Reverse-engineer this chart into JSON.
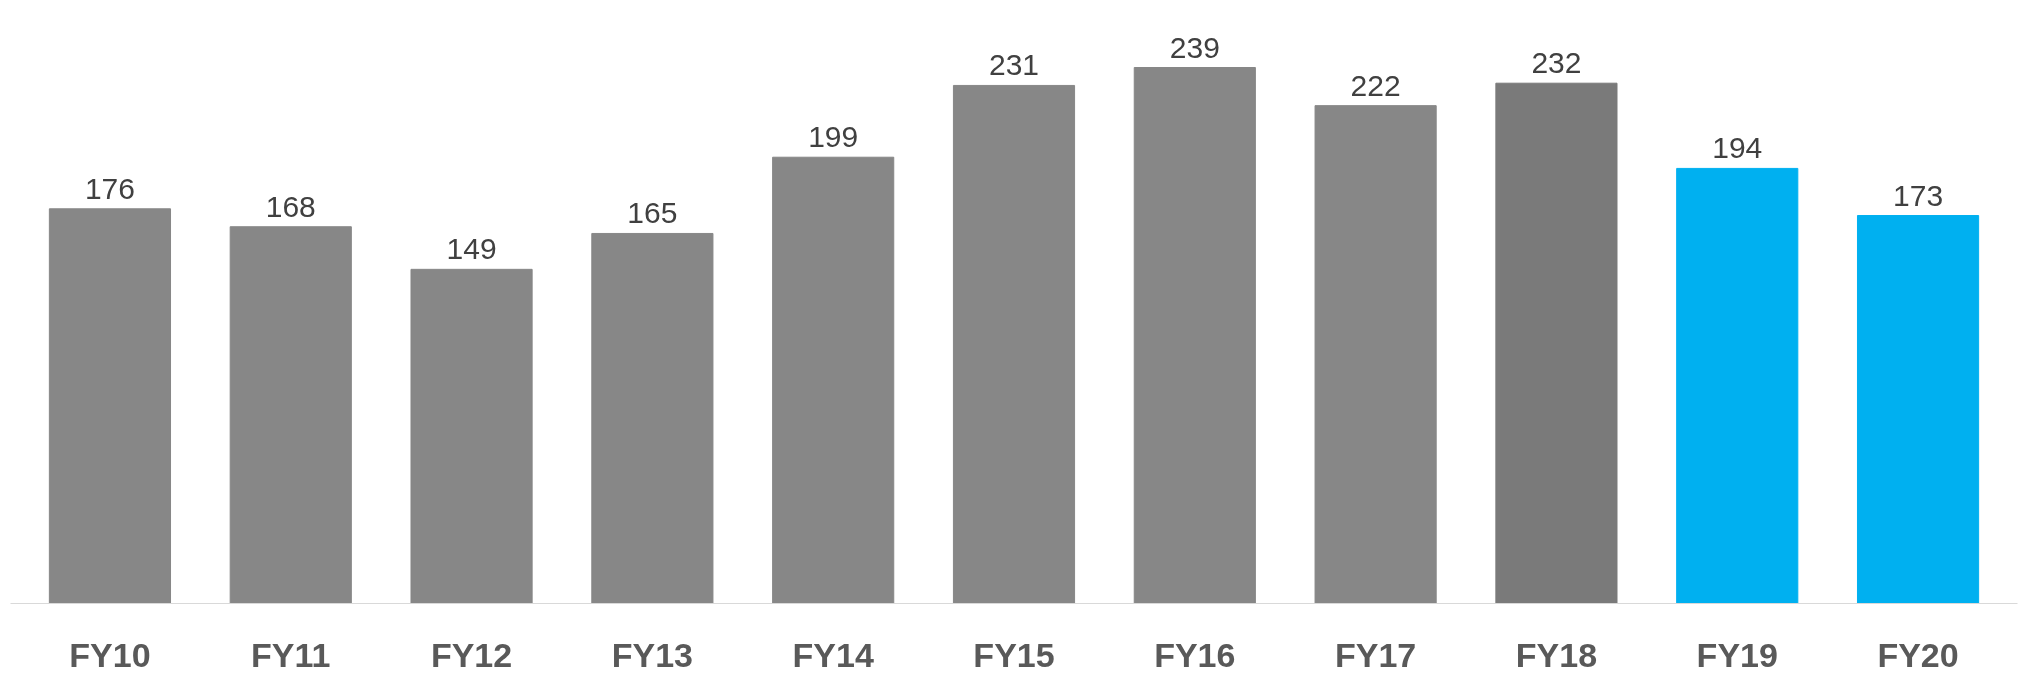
{
  "chart_data": {
    "type": "bar",
    "categories": [
      "FY10",
      "FY11",
      "FY12",
      "FY13",
      "FY14",
      "FY15",
      "FY16",
      "FY17",
      "FY18",
      "FY19",
      "FY20"
    ],
    "values": [
      176,
      168,
      149,
      165,
      199,
      231,
      239,
      222,
      232,
      194,
      173
    ],
    "colors": [
      "#878787",
      "#878787",
      "#878787",
      "#878787",
      "#878787",
      "#878787",
      "#878787",
      "#878787",
      "#7a7a7a",
      "#00b0f0",
      "#00b0f0"
    ],
    "data_labels": true
  }
}
